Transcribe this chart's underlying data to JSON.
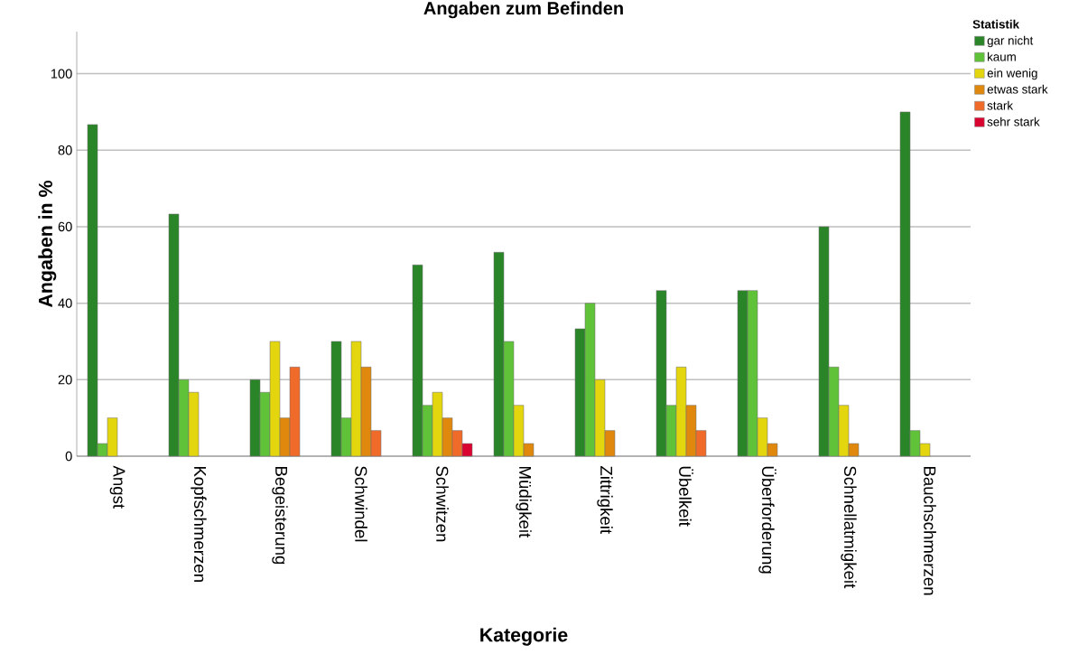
{
  "chart_data": {
    "type": "bar",
    "title": "Angaben zum Befinden",
    "xlabel": "Kategorie",
    "ylabel": "Angaben in %",
    "legend_title": "Statistik",
    "categories": [
      "Angst",
      "Kopfschmerzen",
      "Begeisterung",
      "Schwindel",
      "Schwitzen",
      "Müdigkeit",
      "Zittrigkeit",
      "Übelkeit",
      "Überforderung",
      "Schnellatmigkeit",
      "Bauchschmerzen"
    ],
    "series": [
      {
        "name": "gar nicht",
        "color": "#2a8528",
        "values": [
          86.7,
          63.3,
          20,
          30,
          50,
          53.3,
          33.3,
          43.3,
          43.3,
          60,
          90
        ]
      },
      {
        "name": "kaum",
        "color": "#5fc238",
        "values": [
          3.3,
          20,
          16.7,
          10,
          13.3,
          30,
          40,
          13.3,
          43.3,
          23.3,
          6.7
        ]
      },
      {
        "name": "ein wenig",
        "color": "#e3d60e",
        "values": [
          10,
          16.7,
          30,
          30,
          16.7,
          13.3,
          20,
          23.3,
          10,
          13.3,
          3.3
        ]
      },
      {
        "name": "etwas stark",
        "color": "#df880d",
        "values": [
          null,
          null,
          10,
          23.3,
          10,
          3.3,
          6.7,
          13.3,
          3.3,
          3.3,
          null
        ]
      },
      {
        "name": "stark",
        "color": "#f06a2a",
        "values": [
          null,
          null,
          23.3,
          6.7,
          6.7,
          null,
          null,
          6.7,
          null,
          null,
          null
        ]
      },
      {
        "name": "sehr stark",
        "color": "#d9042f",
        "values": [
          null,
          null,
          null,
          null,
          3.3,
          null,
          null,
          null,
          null,
          null,
          null
        ]
      }
    ],
    "ylim": [
      0,
      111
    ],
    "yticks": [
      0,
      20,
      40,
      60,
      80,
      100
    ],
    "grid": "y",
    "legend": "top right"
  }
}
